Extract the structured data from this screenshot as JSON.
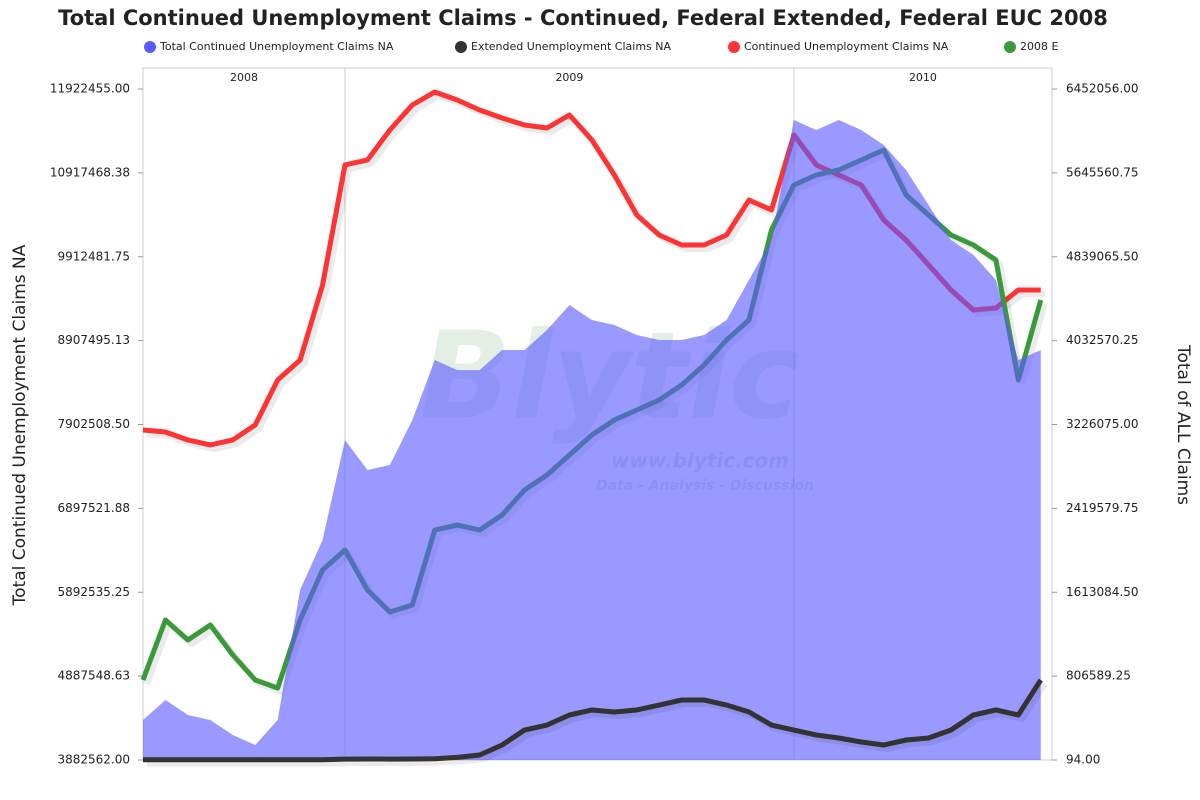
{
  "chart_data": {
    "type": "line",
    "title": "Total Continued Unemployment Claims - Continued, Federal Extended, Federal EUC 2008",
    "y_label": "Total Continued Unemployment Claims NA",
    "y2_label": "Total of ALL Claims",
    "watermark": "Blytic",
    "watermark_url": "www.blytic.com",
    "watermark_tagline": "Data - Analysis - Discussion",
    "years": [
      "2008",
      "2009",
      "2010"
    ],
    "xlim": [
      2008.55,
      2010.575
    ],
    "xticks": [
      2009,
      2010
    ],
    "x": [
      2008.55,
      2008.6,
      2008.65,
      2008.7,
      2008.75,
      2008.8,
      2008.85,
      2008.9,
      2008.95,
      2009.0,
      2009.05,
      2009.1,
      2009.15,
      2009.2,
      2009.25,
      2009.3,
      2009.35,
      2009.4,
      2009.45,
      2009.5,
      2009.55,
      2009.6,
      2009.65,
      2009.7,
      2009.75,
      2009.8,
      2009.85,
      2009.9,
      2009.95,
      2010.0,
      2010.05,
      2010.1,
      2010.15,
      2010.2,
      2010.25,
      2010.3,
      2010.35,
      2010.4,
      2010.45,
      2010.5,
      2010.55
    ],
    "ylim": [
      3882562,
      11922455
    ],
    "yticks": [
      {
        "value": 3882562,
        "label": "3882562.00"
      },
      {
        "value": 4887548.63,
        "label": "4887548.63"
      },
      {
        "value": 5892535.25,
        "label": "5892535.25"
      },
      {
        "value": 6897521.88,
        "label": "6897521.88"
      },
      {
        "value": 7902508.5,
        "label": "7902508.50"
      },
      {
        "value": 8907495.13,
        "label": "8907495.13"
      },
      {
        "value": 9912481.75,
        "label": "9912481.75"
      },
      {
        "value": 10917468.38,
        "label": "10917468.38"
      },
      {
        "value": 11922455,
        "label": "11922455.00"
      }
    ],
    "y2lim": [
      94,
      6452056
    ],
    "y2ticks": [
      {
        "value": 94,
        "label": "94.00"
      },
      {
        "value": 806589.25,
        "label": "806589.25"
      },
      {
        "value": 1613084.5,
        "label": "1613084.50"
      },
      {
        "value": 2419579.75,
        "label": "2419579.75"
      },
      {
        "value": 3226075,
        "label": "3226075.00"
      },
      {
        "value": 4032570.25,
        "label": "4032570.25"
      },
      {
        "value": 4839065.5,
        "label": "4839065.50"
      },
      {
        "value": 5645560.75,
        "label": "5645560.75"
      },
      {
        "value": 6452056,
        "label": "6452056.00"
      }
    ],
    "series": [
      {
        "name": "Total Continued Unemployment Claims NA",
        "color": "#5a5aff",
        "kind": "area",
        "axis": "y2",
        "values": [
          384700,
          577000,
          432800,
          384700,
          240500,
          144300,
          384700,
          1634700,
          2115500,
          3077000,
          2788600,
          2836600,
          3269300,
          3846300,
          3749100,
          3749100,
          3942400,
          3942400,
          4134700,
          4375100,
          4230900,
          4182800,
          4087100,
          4038600,
          4038600,
          4087100,
          4230900,
          4615500,
          5000100,
          6154000,
          6057800,
          6154000,
          6057800,
          5913600,
          5673200,
          5336700,
          5000100,
          4855900,
          4615500,
          3846300,
          3942400
        ]
      },
      {
        "name": "Extended Unemployment Claims NA",
        "color": "#333333",
        "kind": "line",
        "axis": "y2",
        "values": [
          2000,
          2000,
          2000,
          2000,
          2000,
          2000,
          2000,
          2000,
          3000,
          8000,
          10000,
          9000,
          10000,
          12000,
          25000,
          48200,
          144300,
          288500,
          336600,
          432800,
          480900,
          461600,
          480900,
          528900,
          577000,
          577000,
          528900,
          461600,
          336600,
          288500,
          240500,
          211600,
          173200,
          144300,
          192400,
          211600,
          288500,
          432800,
          480900,
          432800,
          769300
        ]
      },
      {
        "name": "Continued Unemployment Claims NA",
        "color": "#ff3333",
        "kind": "line",
        "values": [
          7837000,
          7813000,
          7717000,
          7657000,
          7717000,
          7897000,
          8436000,
          8675000,
          9574000,
          11012000,
          11072000,
          11431000,
          11731000,
          11887000,
          11791000,
          11671000,
          11575000,
          11491000,
          11455000,
          11611000,
          11311000,
          10892000,
          10413000,
          10173000,
          10053000,
          10053000,
          10173000,
          10592000,
          10473000,
          11371000,
          11012000,
          10892000,
          10772000,
          10353000,
          10113000,
          9814000,
          9514000,
          9274000,
          9298000,
          9514000,
          9514000
        ]
      },
      {
        "name": "2008 E",
        "color": "#3a9a3a",
        "kind": "line",
        "axis": "y2",
        "values": [
          769300,
          1346300,
          1154000,
          1298200,
          1009700,
          769300,
          692400,
          1346300,
          1827000,
          2019300,
          1634700,
          1423200,
          1490500,
          2211600,
          2259700,
          2211600,
          2355900,
          2596200,
          2740500,
          2932800,
          3125100,
          3269300,
          3365500,
          3461600,
          3605900,
          3798200,
          4038600,
          4230900,
          5096300,
          5529000,
          5625100,
          5673200,
          5769400,
          5865500,
          5432800,
          5240500,
          5048200,
          4952000,
          4807800,
          3654000,
          4423200
        ]
      }
    ]
  }
}
